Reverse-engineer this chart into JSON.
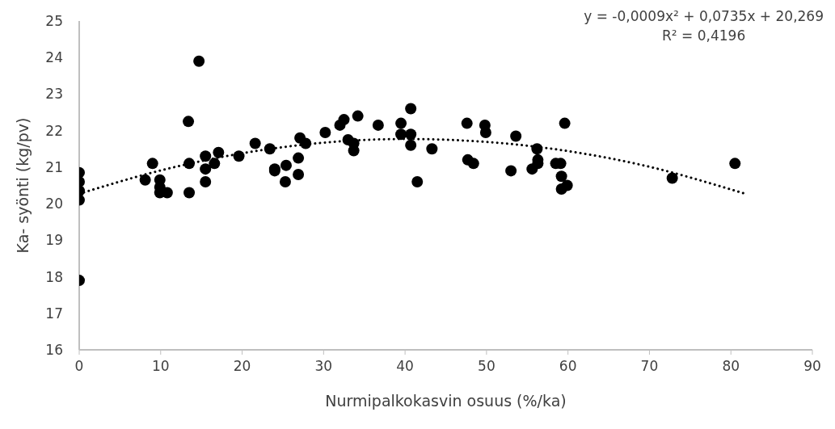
{
  "chart_data": {
    "type": "scatter",
    "xlabel": "Nurmipalkokasvin osuus (%/ka)",
    "ylabel": "Ka- syönti (kg/pv)",
    "annotations": [
      "y = -0,0009x² + 0,0735x + 20,269",
      "R² = 0,4196"
    ],
    "xlim": [
      0,
      90
    ],
    "xticks": [
      0,
      10,
      20,
      30,
      40,
      50,
      60,
      70,
      80,
      90
    ],
    "ylim": [
      16,
      25
    ],
    "yticks": [
      16,
      17,
      18,
      19,
      20,
      21,
      22,
      23,
      24,
      25
    ],
    "grid": false,
    "legend": false,
    "series": [
      {
        "color": "#000000",
        "marker": "circle",
        "x": [
          0,
          0,
          0,
          0,
          0,
          14.7,
          13.4,
          9.0,
          8.1,
          9.9,
          9.9,
          9.9,
          10.8,
          13.5,
          13.5,
          15.5,
          15.5,
          15.5,
          16.6,
          17.1,
          19.6,
          21.6,
          23.4,
          24.0,
          24.0,
          25.4,
          25.3,
          26.9,
          26.9,
          27.1,
          27.8,
          30.2,
          32.0,
          32.5,
          34.2,
          33.0,
          33.7,
          33.7,
          36.7,
          39.5,
          39.5,
          40.7,
          40.7,
          40.7,
          41.5,
          43.3,
          47.6,
          47.7,
          48.4,
          49.8,
          49.9,
          53.6,
          53.0,
          56.2,
          56.3,
          56.3,
          55.6,
          58.5,
          59.1,
          59.6,
          59.2,
          59.9,
          59.2,
          72.8,
          80.5
        ],
        "values": [
          20.85,
          20.6,
          20.35,
          20.1,
          17.9,
          23.9,
          22.25,
          21.1,
          20.65,
          20.65,
          20.45,
          20.3,
          20.3,
          21.1,
          20.3,
          21.3,
          20.95,
          20.6,
          21.1,
          21.4,
          21.3,
          21.65,
          21.5,
          20.95,
          20.9,
          21.05,
          20.6,
          21.25,
          20.8,
          21.8,
          21.65,
          21.95,
          22.15,
          22.3,
          22.4,
          21.75,
          21.65,
          21.45,
          22.15,
          22.2,
          21.9,
          22.6,
          21.9,
          21.6,
          20.6,
          21.5,
          22.2,
          21.2,
          21.1,
          22.15,
          21.95,
          21.85,
          20.9,
          21.5,
          21.2,
          21.1,
          20.95,
          21.1,
          21.1,
          22.2,
          20.75,
          20.5,
          20.4,
          20.7,
          21.1
        ]
      },
      {
        "type": "line",
        "color": "#000000",
        "marker": "none",
        "line_style": "dotted",
        "x": [
          0,
          10,
          20,
          30,
          40,
          50,
          60,
          70,
          80,
          81.5
        ],
        "values": [
          20.27,
          20.91,
          21.38,
          21.67,
          21.77,
          21.69,
          21.44,
          21.01,
          20.39,
          20.29
        ]
      }
    ]
  }
}
